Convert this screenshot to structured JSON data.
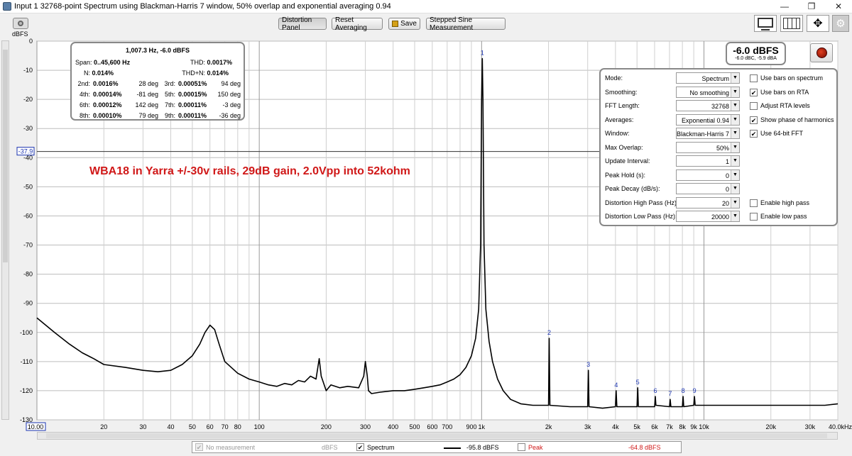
{
  "window": {
    "title": "Input 1 32768-point Spectrum using Blackman-Harris 7 window, 50% overlap and exponential averaging 0.94",
    "minimize_glyph": "—",
    "maximize_glyph": "❐",
    "close_glyph": "✕"
  },
  "toolbar": {
    "distortion_panel": "Distortion Panel",
    "reset_averaging": "Reset Averaging",
    "save": "Save",
    "stepped_sine": "Stepped Sine Measurement"
  },
  "unit_label": "dBFS",
  "distortion": {
    "header": "1,007.3 Hz, -6.0 dBFS",
    "span_label": "Span:",
    "span_value": "0..45,600 Hz",
    "thd_label": "THD:",
    "thd_value": "0.0017%",
    "n_label": "N:",
    "n_value": "0.014%",
    "thdn_label": "THD+N:",
    "thdn_value": "0.014%",
    "harmonics": [
      {
        "l1": "2nd:",
        "v1": "0.0016%",
        "d1": "28 deg",
        "l2": "3rd:",
        "v2": "0.00051%",
        "d2": "94 deg"
      },
      {
        "l1": "4th:",
        "v1": "0.00014%",
        "d1": "-81 deg",
        "l2": "5th:",
        "v2": "0.00015%",
        "d2": "150 deg"
      },
      {
        "l1": "6th:",
        "v1": "0.00012%",
        "d1": "142 deg",
        "l2": "7th:",
        "v2": "0.00011%",
        "d2": "-3 deg"
      },
      {
        "l1": "8th:",
        "v1": "0.00010%",
        "d1": "79 deg",
        "l2": "9th:",
        "v2": "0.00011%",
        "d2": "-36 deg"
      }
    ]
  },
  "peak": {
    "value": "-6.0 dBFS",
    "sub": "-6.0 dBC, -5.9 dBA"
  },
  "settings": {
    "rows": [
      {
        "label": "Mode:",
        "value": "Spectrum"
      },
      {
        "label": "Smoothing:",
        "value": "No  smoothing"
      },
      {
        "label": "FFT Length:",
        "value": "32768"
      },
      {
        "label": "Averages:",
        "value": "Exponential 0.94"
      },
      {
        "label": "Window:",
        "value": "Blackman-Harris 7"
      },
      {
        "label": "Max Overlap:",
        "value": "50%"
      },
      {
        "label": "Update Interval:",
        "value": "1"
      },
      {
        "label": "Peak Hold (s):",
        "value": "0"
      },
      {
        "label": "Peak Decay (dB/s):",
        "value": "0"
      },
      {
        "label": "Distortion High Pass (Hz):",
        "value": "20"
      },
      {
        "label": "Distortion Low Pass (Hz):",
        "value": "20000"
      }
    ],
    "checks": [
      {
        "label": "Use bars on spectrum",
        "checked": false
      },
      {
        "label": "Use bars on RTA",
        "checked": true
      },
      {
        "label": "Adjust RTA levels",
        "checked": false
      },
      {
        "label": "Show phase of harmonics",
        "checked": true
      },
      {
        "label": "Use 64-bit FFT",
        "checked": true
      },
      {
        "label": "Enable high pass",
        "checked": false
      },
      {
        "label": "Enable low pass",
        "checked": false
      }
    ],
    "check_mark": "✔"
  },
  "annotation": "WBA18 in Yarra +/-30v rails, 29dB gain, 2.0Vpp into 52kohm",
  "legend": {
    "no_measurement": "No measurement",
    "no_measurement_unit": "dBFS",
    "spectrum": "Spectrum",
    "spectrum_value": "-95.8 dBFS",
    "peak": "Peak",
    "peak_value": "-64.8 dBFS",
    "check_mark": "✔"
  },
  "chart_data": {
    "type": "line",
    "x_scale": "log",
    "xlim": [
      10,
      40000
    ],
    "ylim": [
      -130,
      0
    ],
    "ylabel": "dBFS",
    "y_ticks": [
      0,
      -10,
      -20,
      -30,
      -40,
      -50,
      -60,
      -70,
      -80,
      -90,
      -100,
      -110,
      -120,
      -130
    ],
    "x_ticks": [
      {
        "v": 10,
        "label": "10.00"
      },
      {
        "v": 20,
        "label": "20"
      },
      {
        "v": 30,
        "label": "30"
      },
      {
        "v": 40,
        "label": "40"
      },
      {
        "v": 50,
        "label": "50"
      },
      {
        "v": 60,
        "label": "60"
      },
      {
        "v": 70,
        "label": "70"
      },
      {
        "v": 80,
        "label": "80"
      },
      {
        "v": 100,
        "label": "100"
      },
      {
        "v": 200,
        "label": "200"
      },
      {
        "v": 300,
        "label": "300"
      },
      {
        "v": 400,
        "label": "400"
      },
      {
        "v": 500,
        "label": "500"
      },
      {
        "v": 600,
        "label": "600"
      },
      {
        "v": 700,
        "label": "700"
      },
      {
        "v": 900,
        "label": "900"
      },
      {
        "v": 1000,
        "label": "1k"
      },
      {
        "v": 2000,
        "label": "2k"
      },
      {
        "v": 3000,
        "label": "3k"
      },
      {
        "v": 4000,
        "label": "4k"
      },
      {
        "v": 5000,
        "label": "5k"
      },
      {
        "v": 6000,
        "label": "6k"
      },
      {
        "v": 7000,
        "label": "7k"
      },
      {
        "v": 8000,
        "label": "8k"
      },
      {
        "v": 9000,
        "label": "9k"
      },
      {
        "v": 10000,
        "label": "10k"
      },
      {
        "v": 20000,
        "label": "20k"
      },
      {
        "v": 30000,
        "label": "30k"
      },
      {
        "v": 40000,
        "label": "40.0kHz"
      }
    ],
    "cursor": {
      "value": -37.9,
      "label": "-37.9"
    },
    "harmonic_markers": [
      {
        "label": "1",
        "x": 1007,
        "y": -6
      },
      {
        "label": "2",
        "x": 2014,
        "y": -102
      },
      {
        "label": "3",
        "x": 3021,
        "y": -113
      },
      {
        "label": "4",
        "x": 4029,
        "y": -120
      },
      {
        "label": "5",
        "x": 5036,
        "y": -119
      },
      {
        "label": "6",
        "x": 6043,
        "y": -122
      },
      {
        "label": "7",
        "x": 7050,
        "y": -123
      },
      {
        "label": "8",
        "x": 8058,
        "y": -122
      },
      {
        "label": "9",
        "x": 9065,
        "y": -122
      }
    ],
    "series": [
      {
        "color": "#000000",
        "points": [
          [
            10,
            -95
          ],
          [
            12,
            -100
          ],
          [
            14,
            -104
          ],
          [
            16,
            -107
          ],
          [
            18,
            -109
          ],
          [
            20,
            -111
          ],
          [
            25,
            -112
          ],
          [
            30,
            -113
          ],
          [
            35,
            -113.5
          ],
          [
            40,
            -113
          ],
          [
            45,
            -111
          ],
          [
            50,
            -108
          ],
          [
            54,
            -104
          ],
          [
            57,
            -100
          ],
          [
            60,
            -97.5
          ],
          [
            63,
            -99
          ],
          [
            66,
            -104
          ],
          [
            70,
            -110
          ],
          [
            80,
            -114
          ],
          [
            90,
            -116
          ],
          [
            100,
            -117
          ],
          [
            110,
            -118
          ],
          [
            120,
            -118.5
          ],
          [
            130,
            -117.5
          ],
          [
            140,
            -118
          ],
          [
            150,
            -116.5
          ],
          [
            160,
            -117
          ],
          [
            170,
            -115
          ],
          [
            180,
            -116
          ],
          [
            186,
            -109
          ],
          [
            190,
            -115
          ],
          [
            200,
            -120
          ],
          [
            210,
            -118
          ],
          [
            230,
            -119
          ],
          [
            250,
            -118.5
          ],
          [
            280,
            -119
          ],
          [
            295,
            -115
          ],
          [
            300,
            -110
          ],
          [
            306,
            -115
          ],
          [
            310,
            -120
          ],
          [
            320,
            -121
          ],
          [
            350,
            -120.5
          ],
          [
            400,
            -120
          ],
          [
            450,
            -120
          ],
          [
            500,
            -119.5
          ],
          [
            550,
            -119
          ],
          [
            600,
            -118.5
          ],
          [
            650,
            -118
          ],
          [
            700,
            -117
          ],
          [
            750,
            -116
          ],
          [
            800,
            -114.5
          ],
          [
            850,
            -112
          ],
          [
            900,
            -108
          ],
          [
            940,
            -102
          ],
          [
            970,
            -92
          ],
          [
            990,
            -70
          ],
          [
            1000,
            -20
          ],
          [
            1007,
            -6
          ],
          [
            1014,
            -20
          ],
          [
            1025,
            -70
          ],
          [
            1045,
            -92
          ],
          [
            1080,
            -103
          ],
          [
            1120,
            -110
          ],
          [
            1180,
            -116
          ],
          [
            1250,
            -120
          ],
          [
            1350,
            -123
          ],
          [
            1500,
            -124.5
          ],
          [
            1700,
            -125
          ],
          [
            2000,
            -125
          ],
          [
            2014,
            -102
          ],
          [
            2028,
            -125
          ],
          [
            2500,
            -125.5
          ],
          [
            3000,
            -125.5
          ],
          [
            3021,
            -113
          ],
          [
            3042,
            -125.5
          ],
          [
            3500,
            -126
          ],
          [
            4000,
            -125.5
          ],
          [
            4029,
            -120
          ],
          [
            4058,
            -125.5
          ],
          [
            4500,
            -125.5
          ],
          [
            5000,
            -125.5
          ],
          [
            5036,
            -119
          ],
          [
            5072,
            -125.5
          ],
          [
            6000,
            -125.5
          ],
          [
            6043,
            -122
          ],
          [
            6080,
            -125
          ],
          [
            7000,
            -125.5
          ],
          [
            7050,
            -123
          ],
          [
            7100,
            -125.5
          ],
          [
            8000,
            -125.5
          ],
          [
            8058,
            -122
          ],
          [
            8110,
            -125.5
          ],
          [
            9000,
            -125
          ],
          [
            9065,
            -122
          ],
          [
            9130,
            -125
          ],
          [
            10000,
            -125
          ],
          [
            15000,
            -125
          ],
          [
            20000,
            -125
          ],
          [
            25000,
            -125
          ],
          [
            30000,
            -125
          ],
          [
            35000,
            -125
          ],
          [
            40000,
            -124.5
          ]
        ]
      }
    ]
  }
}
